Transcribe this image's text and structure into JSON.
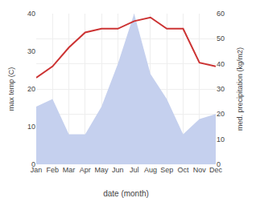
{
  "chart_data": {
    "type": "line",
    "categories": [
      "Jan",
      "Feb",
      "Mar",
      "Apr",
      "May",
      "Jun",
      "Jul",
      "Aug",
      "Sep",
      "Oct",
      "Nov",
      "Dec"
    ],
    "series": [
      {
        "type": "area",
        "axis": "y2",
        "color": "#c5d0ee",
        "values": [
          23,
          26,
          12,
          12,
          23,
          40,
          60,
          36,
          26,
          12,
          18,
          20
        ]
      },
      {
        "type": "line",
        "color": "#cc3333",
        "values": [
          23,
          26,
          31,
          35,
          36,
          36,
          38,
          39,
          36,
          36,
          27,
          26
        ]
      }
    ],
    "xlabel": "date (month)",
    "ylabel": "max temp (C)",
    "y2label": "med. precipitation (kg/m2)",
    "ylim": [
      0,
      40
    ],
    "yticks": [
      0,
      10,
      20,
      30,
      40
    ],
    "y2lim": [
      0,
      60
    ],
    "y2ticks": [
      0,
      10,
      20,
      30,
      40,
      50,
      60
    ],
    "grid": true
  }
}
